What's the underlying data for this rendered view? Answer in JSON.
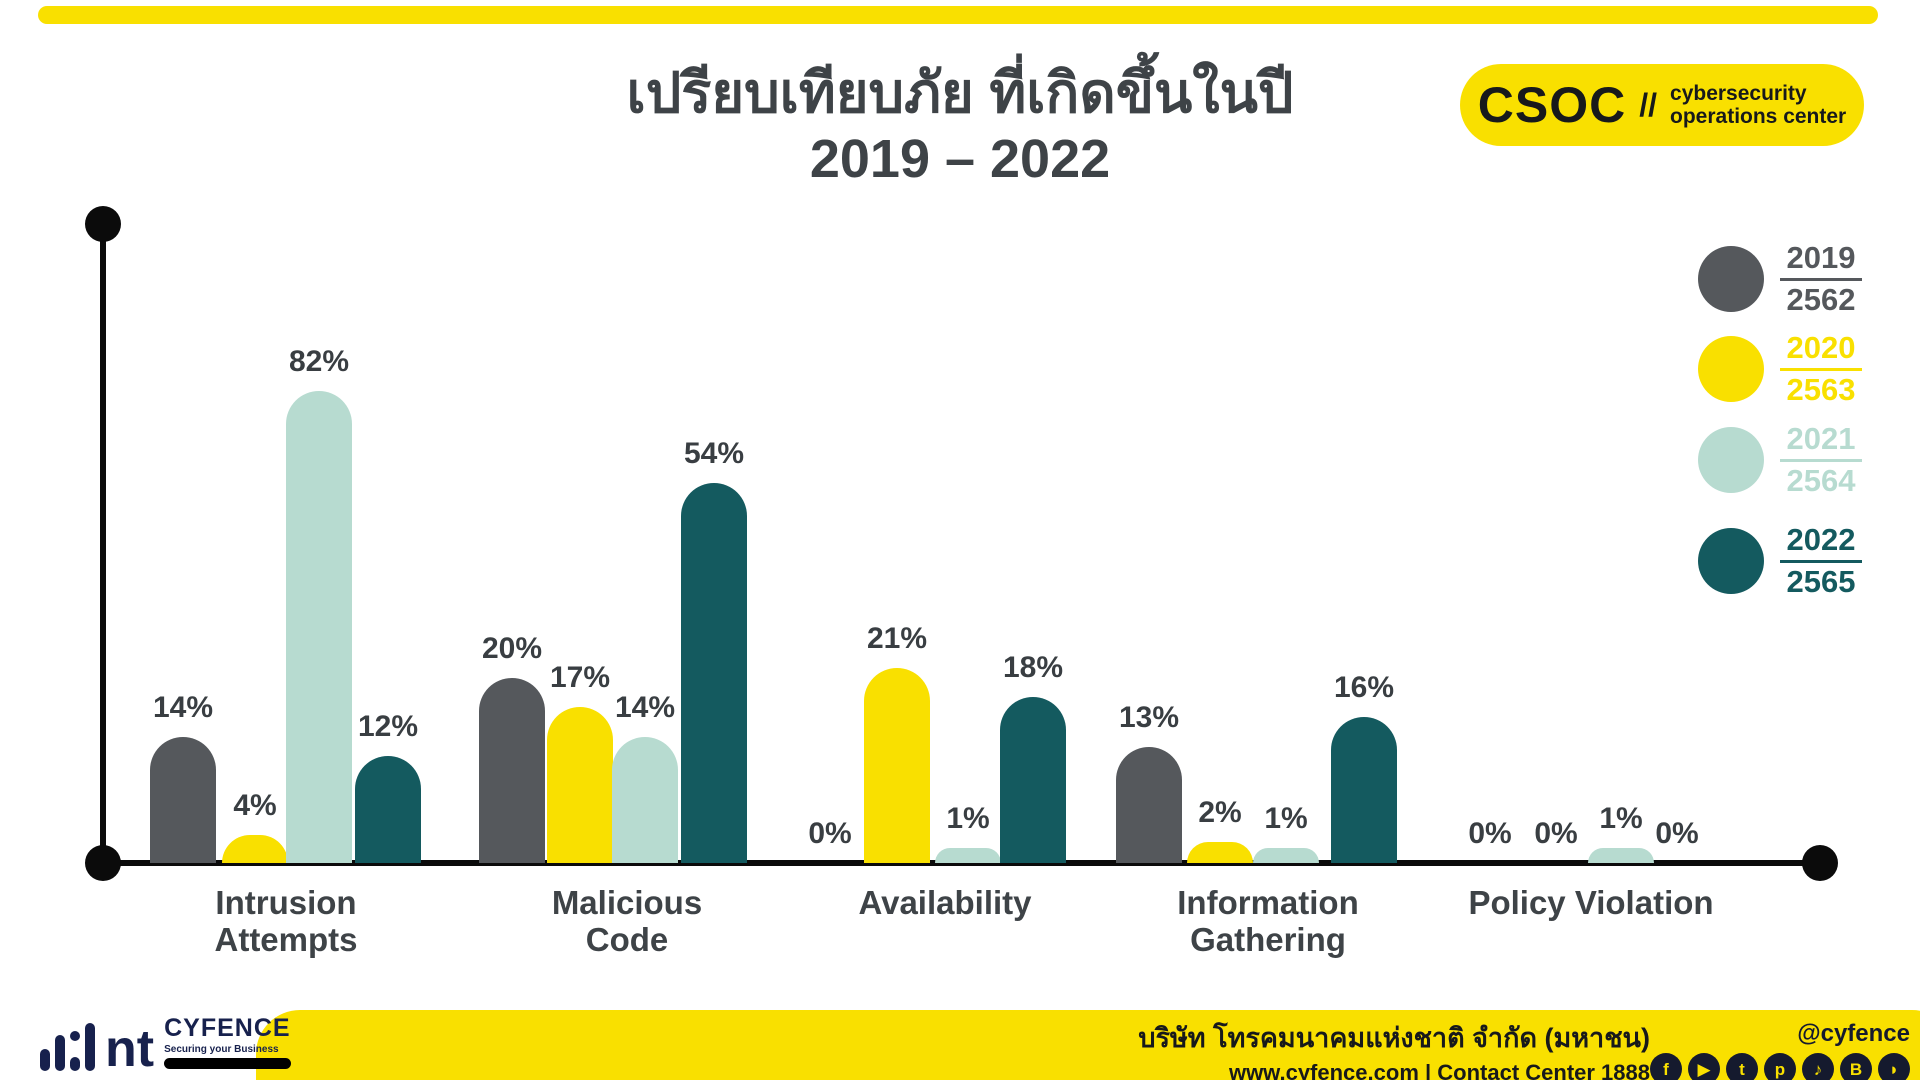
{
  "accent": {
    "yellow": "#F9E000",
    "dark_gray": "#55585C",
    "mint": "#B7DBD0",
    "teal": "#145A5F",
    "navy": "#17214D",
    "text_dark": "#3E4347"
  },
  "title": {
    "line1": "เปรียบเทียบภัย ที่เกิดขึ้นในปี",
    "line2": "2019 – 2022"
  },
  "badge": {
    "brand": "CSOC",
    "divider": "//",
    "desc_line1": "cybersecurity",
    "desc_line2": "operations center"
  },
  "legend": [
    {
      "year": "2019",
      "thai_year": "2562",
      "color": "#55585C"
    },
    {
      "year": "2020",
      "thai_year": "2563",
      "color": "#F9E000"
    },
    {
      "year": "2021",
      "thai_year": "2564",
      "color": "#B7DBD0"
    },
    {
      "year": "2022",
      "thai_year": "2565",
      "color": "#145A5F"
    }
  ],
  "chart_data": {
    "type": "bar",
    "title": "เปรียบเทียบภัย ที่เกิดขึ้นในปี 2019 – 2022",
    "value_suffix": "%",
    "categories": [
      "Intrusion Attempts",
      "Malicious Code",
      "Availability",
      "Information Gathering",
      "Policy Violation"
    ],
    "categories_display": [
      "Intrusion\nAttempts",
      "Malicious\nCode",
      "Availability",
      "Information\nGathering",
      "Policy Violation"
    ],
    "series": [
      {
        "name": "2019 / 2562",
        "color": "#55585C",
        "values": [
          14,
          20,
          0,
          13,
          0
        ]
      },
      {
        "name": "2020 / 2563",
        "color": "#F9E000",
        "values": [
          4,
          17,
          21,
          2,
          0
        ]
      },
      {
        "name": "2021 / 2564",
        "color": "#B7DBD0",
        "values": [
          82,
          14,
          1,
          1,
          1
        ]
      },
      {
        "name": "2022 / 2565",
        "color": "#145A5F",
        "values": [
          12,
          54,
          18,
          16,
          0
        ]
      }
    ],
    "ylim": [
      0,
      100
    ],
    "grid": false,
    "legend_position": "right"
  },
  "footer": {
    "company_thai": "บริษัท โทรคมนาคมแห่งชาติ จำกัด (มหาชน)",
    "contact": "www.cyfence.com | Contact Center 1888",
    "handle": "@cyfence",
    "logo": {
      "nt": "nt",
      "brand": "CYFENCE",
      "tagline": "Securing your Business"
    },
    "social": [
      {
        "name": "facebook-icon",
        "glyph": "f"
      },
      {
        "name": "youtube-icon",
        "glyph": "▶"
      },
      {
        "name": "twitter-icon",
        "glyph": "t"
      },
      {
        "name": "pinterest-icon",
        "glyph": "p"
      },
      {
        "name": "tiktok-icon",
        "glyph": "♪"
      },
      {
        "name": "blockdit-icon",
        "glyph": "B"
      },
      {
        "name": "podcast-icon",
        "glyph": "◗"
      }
    ]
  }
}
